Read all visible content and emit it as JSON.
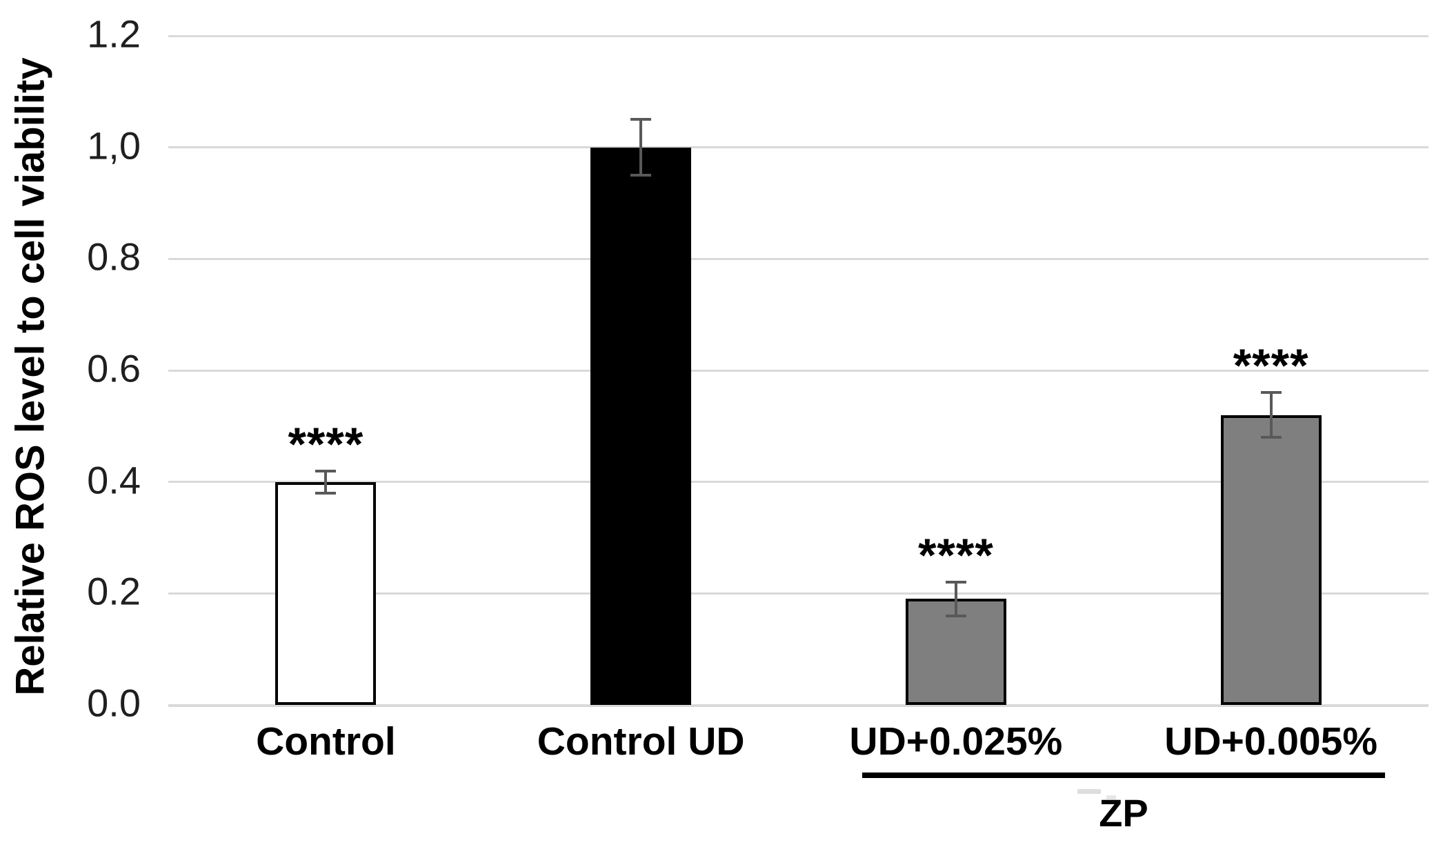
{
  "chart_data": {
    "type": "bar",
    "title": "",
    "ylabel": "Relative ROS level to cell viability",
    "xlabel": "",
    "categories": [
      "Control",
      "Control UD",
      "UD+0.025%",
      "UD+0.005%"
    ],
    "values": [
      0.4,
      1.0,
      0.19,
      0.52
    ],
    "errors": [
      0.02,
      0.05,
      0.03,
      0.04
    ],
    "significance": [
      "****",
      "",
      "****",
      "****"
    ],
    "bar_colors": [
      "#ffffff",
      "#000000",
      "#7f7f7f",
      "#7f7f7f"
    ],
    "bar_border_color": "#000000",
    "error_bar_color": "#595959",
    "ylim": [
      0,
      1.2
    ],
    "ytick_values": [
      0,
      0.2,
      0.4,
      0.6,
      0.8,
      1.0,
      1.2
    ],
    "ytick_labels": [
      "0.0",
      "0.2",
      "0.4",
      "0.6",
      "0.8",
      "1,0",
      "1.2"
    ],
    "grid": true,
    "gridline_color": "#d9d9d9",
    "legend_position": "none",
    "group_annotation": {
      "label": "ZP",
      "start_category": "UD+0.025%",
      "end_category": "UD+0.005%"
    }
  }
}
